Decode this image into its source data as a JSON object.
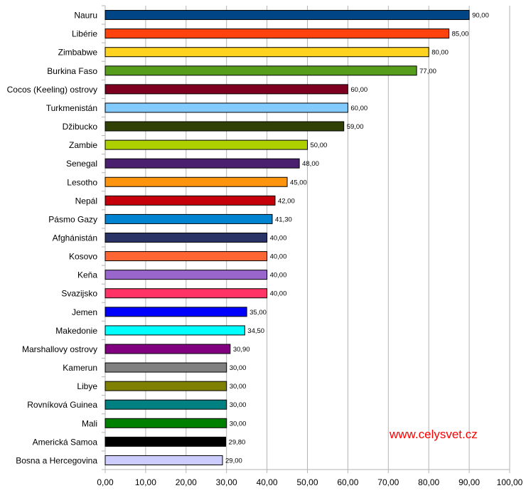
{
  "chart_data": {
    "type": "bar",
    "orientation": "horizontal",
    "categories": [
      "Nauru",
      "Libérie",
      "Zimbabwe",
      "Burkina Faso",
      "Cocos (Keeling) ostrovy",
      "Turkmenistán",
      "Džibucko",
      "Zambie",
      "Senegal",
      "Lesotho",
      "Nepál",
      "Pásmo Gazy",
      "Afghánistán",
      "Kosovo",
      "Keňa",
      "Svazijsko",
      "Jemen",
      "Makedonie",
      "Marshallovy ostrovy",
      "Kamerun",
      "Libye",
      "Rovníková Guinea",
      "Mali",
      "Americká Samoa",
      "Bosna a Hercegovina"
    ],
    "values": [
      90,
      85,
      80,
      77,
      60,
      60,
      59,
      50,
      48,
      45,
      42,
      41.3,
      40,
      40,
      40,
      40,
      35,
      34.5,
      30.9,
      30,
      30,
      30,
      30,
      29.8,
      29
    ],
    "value_labels": [
      "90,00",
      "85,00",
      "80,00",
      "77,00",
      "60,00",
      "60,00",
      "59,00",
      "50,00",
      "48,00",
      "45,00",
      "42,00",
      "41,30",
      "40,00",
      "40,00",
      "40,00",
      "40,00",
      "35,00",
      "34,50",
      "30,90",
      "30,00",
      "30,00",
      "30,00",
      "30,00",
      "29,80",
      "29,00"
    ],
    "colors": [
      "#004586",
      "#ff420e",
      "#ffd320",
      "#579d1c",
      "#7e0021",
      "#83caff",
      "#314004",
      "#aecf00",
      "#4b1f6f",
      "#ff950e",
      "#c5000b",
      "#0084d1",
      "#2a3366",
      "#ff6633",
      "#9966cc",
      "#ff3366",
      "#0000ff",
      "#00ffff",
      "#800080",
      "#808080",
      "#808000",
      "#008080",
      "#008000",
      "#000000",
      "#ccccff"
    ],
    "xlim": [
      0,
      100
    ],
    "x_ticks": [
      "0,00",
      "10,00",
      "20,00",
      "30,00",
      "40,00",
      "50,00",
      "60,00",
      "70,00",
      "80,00",
      "90,00",
      "100,00"
    ],
    "grid": true,
    "title": "",
    "xlabel": "",
    "ylabel": ""
  },
  "watermark": "www.celysvet.cz"
}
